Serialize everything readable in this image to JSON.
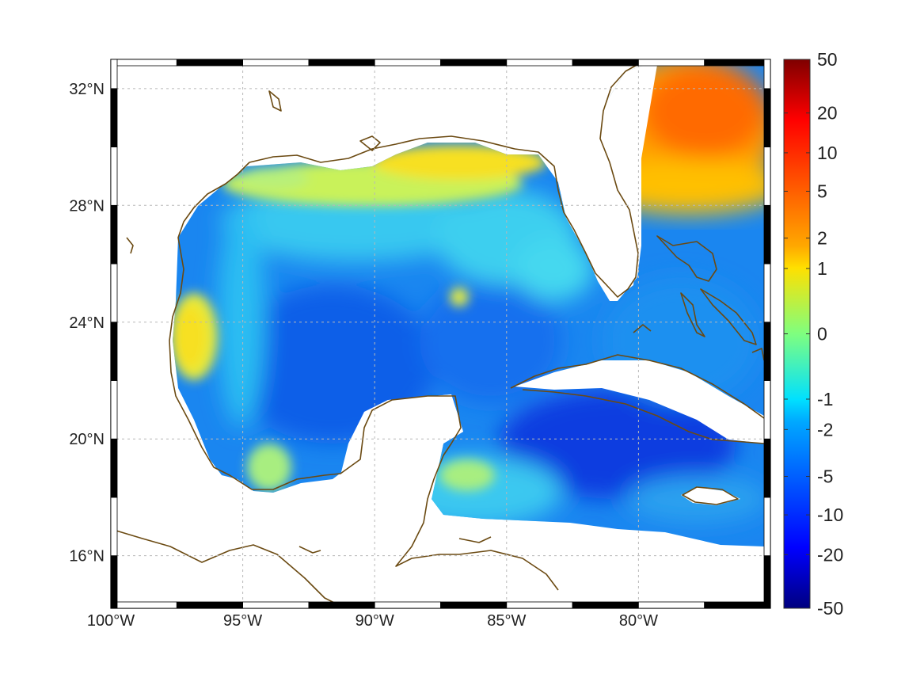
{
  "map": {
    "extent": {
      "lon_min": -100,
      "lon_max": -75,
      "lat_min": 14.2,
      "lat_max": 33.0
    },
    "grid": true,
    "x_ticks": [
      {
        "lon": -100,
        "label": "100°W"
      },
      {
        "lon": -95,
        "label": "95°W"
      },
      {
        "lon": -90,
        "label": "90°W"
      },
      {
        "lon": -85,
        "label": "85°W"
      },
      {
        "lon": -80,
        "label": "80°W"
      }
    ],
    "y_ticks": [
      {
        "lat": 32,
        "label": "32°N"
      },
      {
        "lat": 28,
        "label": "28°N"
      },
      {
        "lat": 24,
        "label": "24°N"
      },
      {
        "lat": 20,
        "label": "20°N"
      },
      {
        "lat": 16,
        "label": "16°N"
      }
    ],
    "coastline_color": "#6b4a12",
    "colormap": "jet"
  },
  "colorbar": {
    "min": -50,
    "max": 50,
    "scale": "symmetric-log",
    "ticks": [
      "50",
      "20",
      "10",
      "5",
      "2",
      "1",
      "0",
      "-1",
      "-2",
      "-5",
      "-10",
      "-20",
      "-50"
    ]
  }
}
